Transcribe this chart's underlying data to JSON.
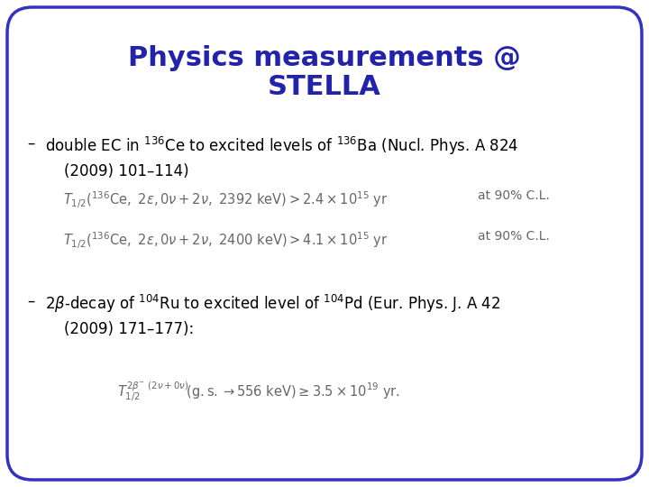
{
  "title_line1": "Physics measurements @",
  "title_line2": "STELLA",
  "title_color": "#2222AA",
  "title_fontsize": 22,
  "bg_color": "#FFFFFF",
  "border_color": "#3333BB",
  "text_color": "#000000",
  "formula_color": "#666666",
  "body_fontsize": 12,
  "formula_fontsize": 10.5
}
